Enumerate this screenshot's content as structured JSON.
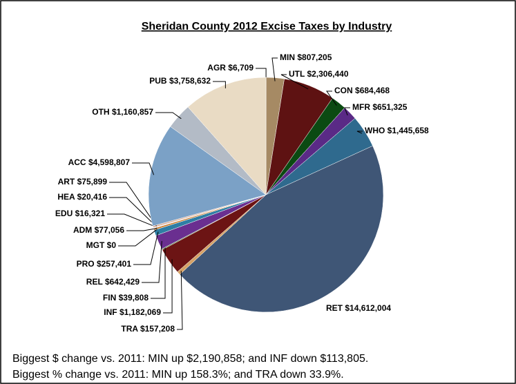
{
  "chart_data": {
    "type": "pie",
    "title": "Sheridan County 2012 Excise Taxes by Industry",
    "categories": [
      "AGR",
      "MIN",
      "UTL",
      "CON",
      "MFR",
      "WHO",
      "RET",
      "TRA",
      "INF",
      "FIN",
      "REL",
      "PRO",
      "MGT",
      "ADM",
      "EDU",
      "HEA",
      "ART",
      "ACC",
      "OTH",
      "PUB"
    ],
    "values": [
      6709,
      807205,
      2306440,
      684468,
      651325,
      1445658,
      14612004,
      157208,
      1182069,
      39808,
      642429,
      257401,
      0,
      77056,
      16321,
      20416,
      75899,
      4598807,
      1160857,
      3758632
    ],
    "value_labels": [
      "$6,709",
      "$807,205",
      "$2,306,440",
      "$684,468",
      "$651,325",
      "$1,445,658",
      "$14,612,004",
      "$157,208",
      "$1,182,069",
      "$39,808",
      "$642,429",
      "$257,401",
      "$0",
      "$77,056",
      "$16,321",
      "$20,416",
      "$75,899",
      "$4,598,807",
      "$1,160,857",
      "$3,758,632"
    ],
    "colors": [
      "#7a5c3a",
      "#a68a64",
      "#5e1212",
      "#0b4a12",
      "#5a2a86",
      "#2f6a8e",
      "#3f5676",
      "#d6a266",
      "#6c1414",
      "#3d6e2a",
      "#6a2f90",
      "#2f7ea4",
      "#8a8a8a",
      "#c87a28",
      "#b0cde0",
      "#c9a0d6",
      "#d9b4a0",
      "#7ba1c6",
      "#b3bbc6",
      "#e9dbc4"
    ]
  },
  "notes": [
    "Biggest $ change vs. 2011: MIN up $2,190,858; and INF down $113,805.",
    "Biggest % change vs. 2011: MIN up 158.3%; and TRA down 33.9%."
  ]
}
